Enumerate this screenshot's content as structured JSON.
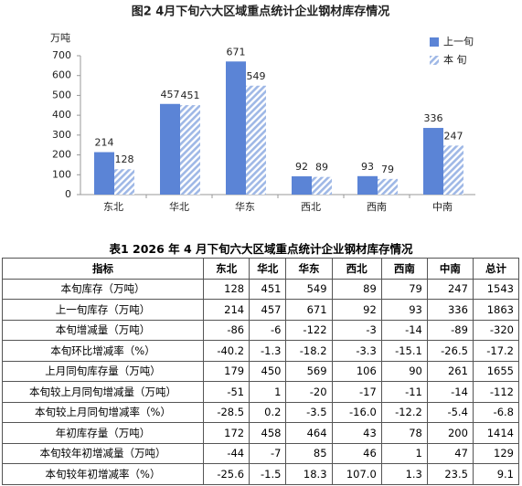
{
  "chart_data": {
    "type": "bar",
    "title": "图2    4月下旬六大区域重点统计企业钢材库存情况",
    "y_label": "万吨",
    "categories": [
      "东北",
      "华北",
      "华东",
      "西北",
      "西南",
      "中南"
    ],
    "series": [
      {
        "name": "上一旬",
        "color": "#5b84d6",
        "hatched": false,
        "values": [
          214,
          457,
          671,
          92,
          93,
          336
        ]
      },
      {
        "name": "本 旬",
        "color": "#9fb8e6",
        "hatched": true,
        "values": [
          128,
          451,
          549,
          89,
          79,
          247
        ]
      }
    ],
    "ylim": [
      0,
      700
    ],
    "yticks": [
      0,
      100,
      200,
      300,
      400,
      500,
      600,
      700
    ],
    "grid": false,
    "legend": "top-right"
  },
  "table": {
    "title": "表1   2026 年 4 月下旬六大区域重点统计企业钢材库存情况",
    "header": [
      "指标",
      "东北",
      "华北",
      "华东",
      "西北",
      "西南",
      "中南",
      "总计"
    ],
    "rows": [
      [
        "本旬库存（万吨）",
        "128",
        "451",
        "549",
        "89",
        "79",
        "247",
        "1543"
      ],
      [
        "上一旬库存（万吨）",
        "214",
        "457",
        "671",
        "92",
        "93",
        "336",
        "1863"
      ],
      [
        "本旬增减量（万吨）",
        "-86",
        "-6",
        "-122",
        "-3",
        "-14",
        "-89",
        "-320"
      ],
      [
        "本旬环比增减率（%）",
        "-40.2",
        "-1.3",
        "-18.2",
        "-3.3",
        "-15.1",
        "-26.5",
        "-17.2"
      ],
      [
        "上月同旬库存量（万吨）",
        "179",
        "450",
        "569",
        "106",
        "90",
        "261",
        "1655"
      ],
      [
        "本旬较上月同旬增减量（万吨）",
        "-51",
        "1",
        "-20",
        "-17",
        "-11",
        "-14",
        "-112"
      ],
      [
        "本旬较上月同旬增减率（%）",
        "-28.5",
        "0.2",
        "-3.5",
        "-16.0",
        "-12.2",
        "-5.4",
        "-6.8"
      ],
      [
        "年初库存量（万吨）",
        "172",
        "458",
        "464",
        "43",
        "78",
        "200",
        "1414"
      ],
      [
        "本旬较年初增减量（万吨）",
        "-44",
        "-7",
        "85",
        "46",
        "1",
        "47",
        "129"
      ],
      [
        "本旬较年初增减率（%）",
        "-25.6",
        "-1.5",
        "18.3",
        "107.0",
        "1.3",
        "23.5",
        "9.1"
      ]
    ]
  }
}
